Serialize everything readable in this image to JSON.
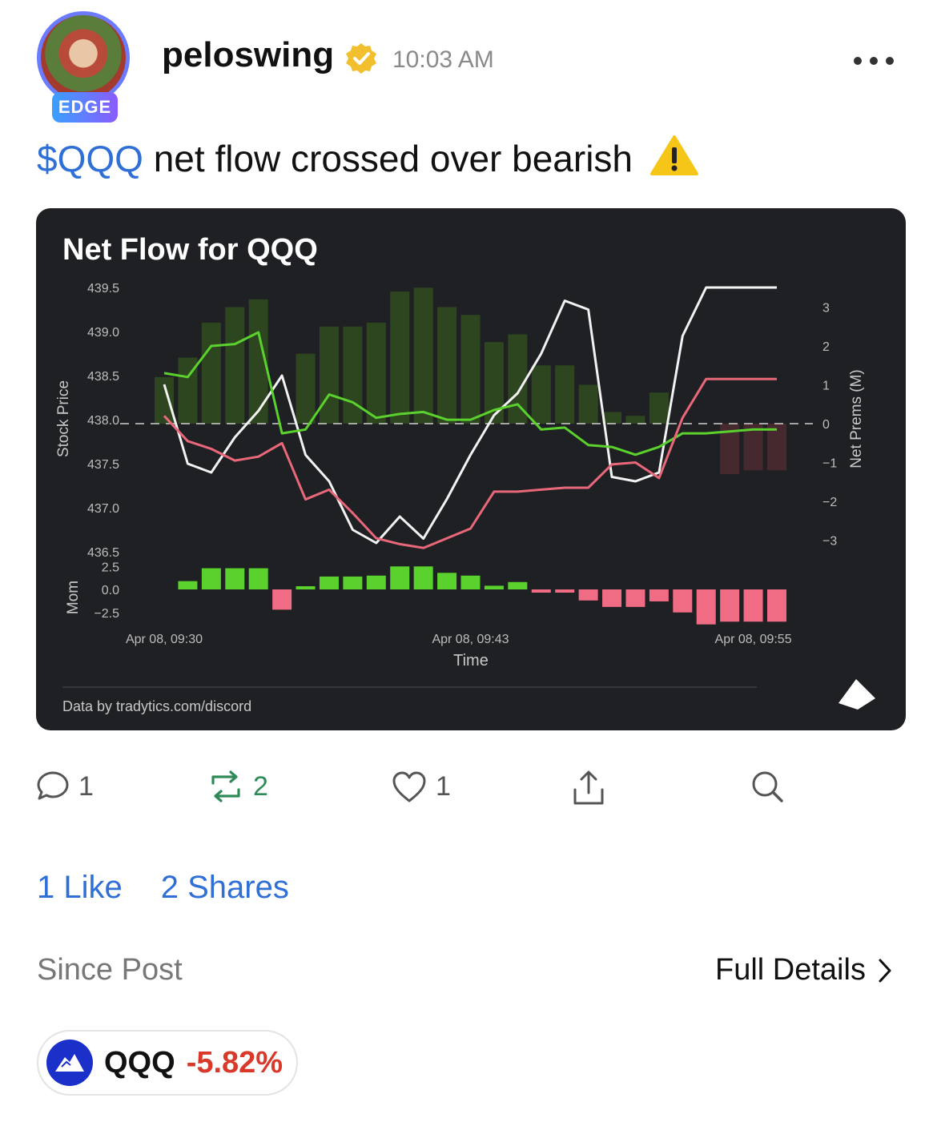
{
  "post": {
    "username": "peloswing",
    "badge": "EDGE",
    "timestamp": "10:03 AM",
    "cashtag": "$QQQ",
    "text": "net flow crossed over bearish"
  },
  "chart_data": {
    "type": "line",
    "title": "Net Flow for QQQ",
    "ylabel": "Stock Price",
    "y2label": "Net Prems (M)",
    "xlabel": "Time",
    "mom_label": "Mom",
    "x_ticks": [
      "Apr 08, 09:30",
      "Apr 08, 09:43",
      "Apr 08, 09:55"
    ],
    "ylim": [
      436.5,
      439.5
    ],
    "y_ticks": [
      "439.5",
      "439.0",
      "438.5",
      "438.0",
      "437.5",
      "437.0",
      "436.5"
    ],
    "y2lim": [
      -3.5,
      3.5
    ],
    "y2_ticks": [
      "3",
      "2",
      "1",
      "0",
      "−1",
      "−2",
      "−3"
    ],
    "mom_ylim": [
      -3,
      3
    ],
    "mom_ticks": [
      "2.5",
      "0.0",
      "−2.5"
    ],
    "minutes": [
      0,
      1,
      2,
      3,
      4,
      5,
      6,
      7,
      8,
      9,
      10,
      11,
      12,
      13,
      14,
      15,
      16,
      17,
      18,
      19,
      20,
      21,
      22,
      23,
      24,
      25,
      26
    ],
    "series": [
      {
        "name": "price",
        "color": "#f2f2f2",
        "values": [
          438.4,
          437.5,
          437.4,
          437.8,
          438.1,
          438.5,
          437.6,
          437.3,
          436.75,
          436.6,
          436.9,
          436.65,
          437.1,
          437.6,
          438.05,
          438.3,
          438.75,
          439.35,
          439.25,
          437.35,
          437.3,
          437.4,
          438.95,
          439.5,
          439.5,
          439.5,
          439.5
        ]
      },
      {
        "name": "net flow",
        "color": "#5ad12c",
        "values": [
          1.3,
          1.2,
          2.0,
          2.05,
          2.35,
          -0.25,
          -0.15,
          0.75,
          0.55,
          0.15,
          0.25,
          0.3,
          0.1,
          0.1,
          0.35,
          0.5,
          -0.15,
          -0.1,
          -0.55,
          -0.6,
          -0.8,
          -0.6,
          -0.25,
          -0.25,
          -0.2,
          -0.15,
          -0.15
        ]
      },
      {
        "name": "net puts",
        "color": "#e8687a",
        "values": [
          0.2,
          -0.45,
          -0.65,
          -0.95,
          -0.85,
          -0.5,
          -1.95,
          -1.7,
          -2.3,
          -2.95,
          -3.1,
          -3.2,
          -2.95,
          -2.7,
          -1.75,
          -1.75,
          -1.7,
          -1.65,
          -1.65,
          -1.05,
          -1.0,
          -1.4,
          0.15,
          1.15,
          1.15,
          1.15,
          1.15
        ]
      }
    ],
    "flow_bars": [
      1.2,
      1.7,
      2.6,
      3.0,
      3.2,
      0,
      1.8,
      2.5,
      2.5,
      2.6,
      3.4,
      3.5,
      3.0,
      2.8,
      2.1,
      2.3,
      1.5,
      1.5,
      1.0,
      0.3,
      0.2,
      0.8,
      0,
      0,
      -1.3,
      -1.2,
      -1.2
    ],
    "mom_bars": [
      null,
      0.9,
      2.3,
      2.3,
      2.3,
      -2.2,
      0.3,
      1.4,
      1.4,
      1.5,
      2.5,
      2.5,
      1.8,
      1.5,
      0.4,
      0.8,
      -0.3,
      -0.3,
      -1.2,
      -1.9,
      -1.9,
      -1.3,
      -2.5,
      -3.8,
      -3.5,
      -3.5,
      -3.5
    ],
    "bar_colors": {
      "pos_flow": "#2f4a20",
      "neg_flow": "#4a2a30",
      "pos_mom": "#5ad12c",
      "neg_mom": "#f06b84"
    },
    "zero_line": "dashed",
    "grid": false
  },
  "credit": "Data by tradytics.com/discord",
  "actions": {
    "comments": "1",
    "reposts": "2",
    "likes": "1"
  },
  "stats": {
    "likes_label": "1 Like",
    "shares_label": "2 Shares"
  },
  "since": {
    "label": "Since Post",
    "details": "Full Details"
  },
  "ticker": {
    "symbol": "QQQ",
    "change": "-5.82%"
  },
  "colors": {
    "accent": "#2f6fd6",
    "repost": "#2e8b57",
    "negative": "#d8392b",
    "card_bg": "#1f2023"
  }
}
